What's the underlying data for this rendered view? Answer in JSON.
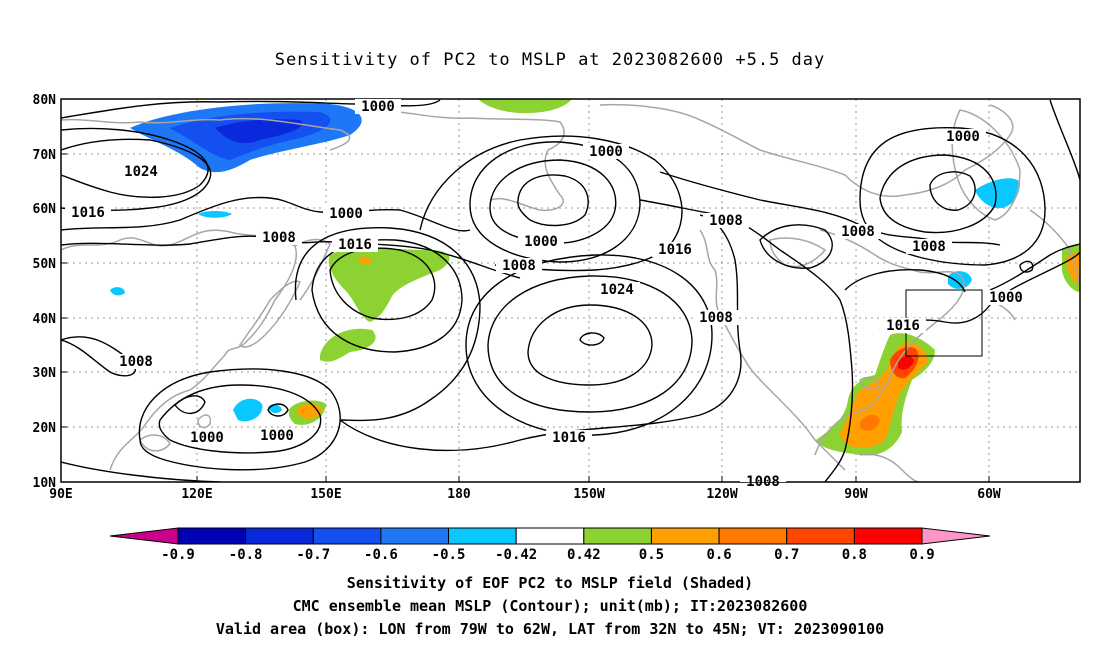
{
  "title": "Sensitivity of PC2 to MSLP at 2023082600 +5.5 day",
  "map": {
    "lat_labels": [
      "80N",
      "70N",
      "60N",
      "50N",
      "40N",
      "30N",
      "20N",
      "10N"
    ],
    "lon_labels": [
      "90E",
      "120E",
      "150E",
      "180",
      "150W",
      "120W",
      "90W",
      "60W"
    ],
    "lat_range": [
      10,
      80
    ],
    "lon_range": [
      "90E",
      "45W"
    ],
    "grid": "dotted",
    "contour_labels": [
      "1000",
      "1024",
      "1000",
      "1016",
      "1000",
      "1000",
      "1008",
      "1016",
      "1000",
      "1008",
      "1008",
      "1016",
      "1024",
      "1008",
      "1008",
      "1008",
      "1000",
      "1016",
      "1008",
      "1000",
      "1000",
      "1016",
      "1008"
    ],
    "valid_box": {
      "lon_from": "79W",
      "lon_to": "62W",
      "lat_from": "32N",
      "lat_to": "45N"
    }
  },
  "colorbar": {
    "labels": [
      "-0.9",
      "-0.8",
      "-0.7",
      "-0.6",
      "-0.5",
      "-0.42",
      "0.42",
      "0.5",
      "0.6",
      "0.7",
      "0.8",
      "0.9"
    ],
    "colors": [
      "#c8008c",
      "#0000b4",
      "#0a28dc",
      "#1450f0",
      "#1e78f5",
      "#0ac8ff",
      "#ffffff",
      "#8cd232",
      "#ffa000",
      "#ff7800",
      "#ff4600",
      "#ff0000",
      "#ff96c8"
    ]
  },
  "captions": [
    "Sensitivity of EOF PC2 to MSLP field (Shaded)",
    "CMC ensemble mean MSLP (Contour); unit(mb); IT:2023082600",
    "Valid area (box): LON from 79W to 62W, LAT from 32N to 45N; VT: 2023090100"
  ]
}
